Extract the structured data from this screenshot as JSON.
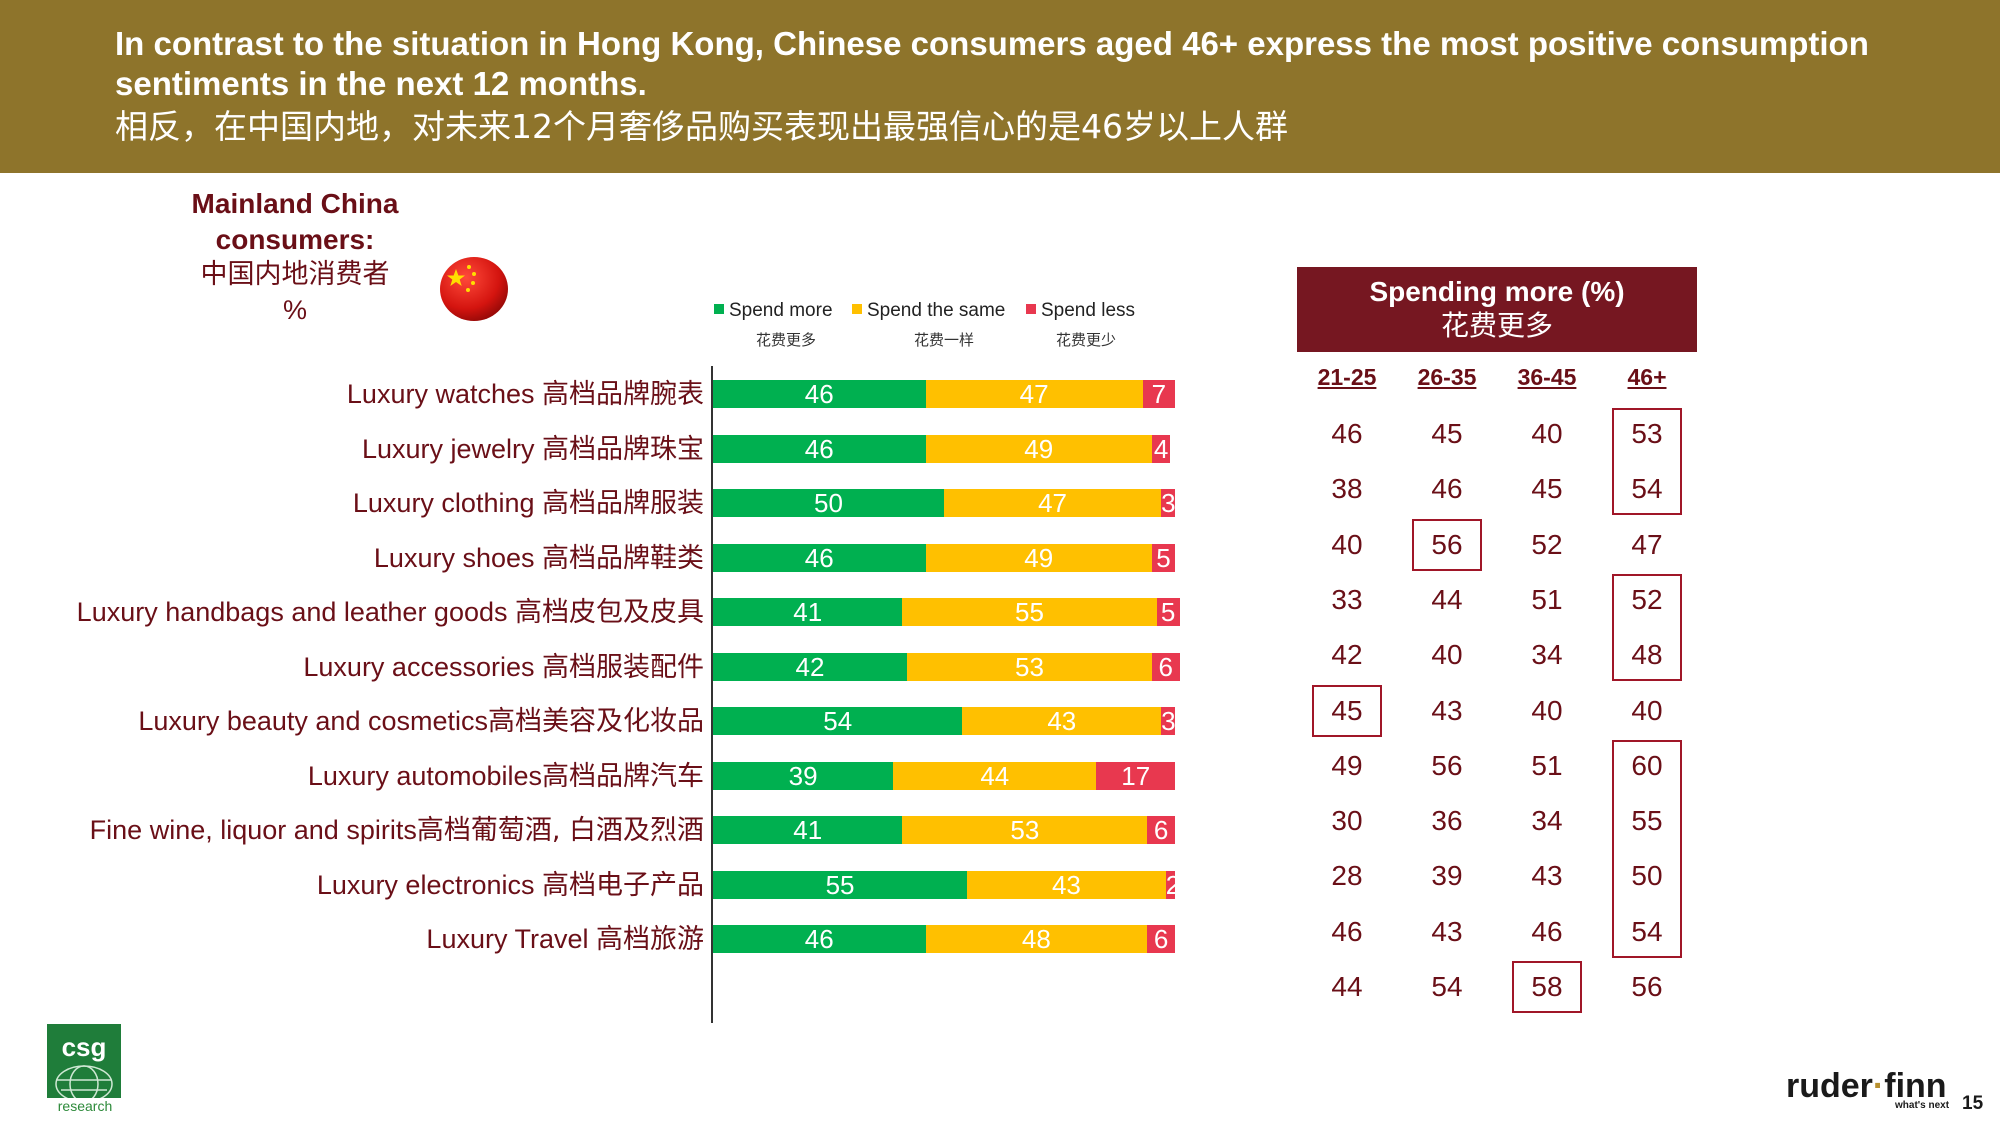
{
  "header": {
    "title_en": "In contrast to the situation in Hong Kong, Chinese consumers aged 46+ express the most positive consumption sentiments in the next 12 months.",
    "title_cn": "相反，在中国内地，对未来12个月奢侈品购买表现出最强信心的是46岁以上人群"
  },
  "segment": {
    "title_en": "Mainland China consumers:",
    "title_cn": "中国内地消费者",
    "unit": "%",
    "flag_icon": "china-flag-icon"
  },
  "colors": {
    "header_bg": "#8e742b",
    "spend_more": "#00b050",
    "spend_same": "#ffc000",
    "spend_less": "#e8384f",
    "maroon": "#761721",
    "highlight_box": "#a01628"
  },
  "chart_data": {
    "type": "bar",
    "orientation": "horizontal-stacked",
    "unit": "%",
    "legend": [
      {
        "name": "Spend more",
        "cn": "花费更多"
      },
      {
        "name": "Spend the same",
        "cn": "花费一样"
      },
      {
        "name": "Spend less",
        "cn": "花费更少"
      }
    ],
    "categories": [
      {
        "en": "Luxury watches ",
        "cn": "高档品牌腕表"
      },
      {
        "en": "Luxury jewelry ",
        "cn": "高档品牌珠宝"
      },
      {
        "en": "Luxury clothing ",
        "cn": "高档品牌服装"
      },
      {
        "en": "Luxury shoes ",
        "cn": "高档品牌鞋类"
      },
      {
        "en": "Luxury handbags and leather goods ",
        "cn": "高档皮包及皮具"
      },
      {
        "en": "Luxury accessories ",
        "cn": "高档服装配件"
      },
      {
        "en": "Luxury beauty and cosmetics",
        "cn": "高档美容及化妆品"
      },
      {
        "en": "Luxury automobiles",
        "cn": "高档品牌汽车"
      },
      {
        "en": "Fine wine, liquor and spirits",
        "cn": "高档葡萄酒, 白酒及烈酒"
      },
      {
        "en": "Luxury electronics ",
        "cn": "高档电子产品"
      },
      {
        "en": "Luxury Travel ",
        "cn": "高档旅游"
      }
    ],
    "series": [
      {
        "name": "Spend more",
        "values": [
          46,
          46,
          50,
          46,
          41,
          42,
          54,
          39,
          41,
          55,
          46
        ]
      },
      {
        "name": "Spend the same",
        "values": [
          47,
          49,
          47,
          49,
          55,
          53,
          43,
          44,
          53,
          43,
          48
        ]
      },
      {
        "name": "Spend less",
        "values": [
          7,
          4,
          3,
          5,
          5,
          6,
          3,
          17,
          6,
          2,
          6
        ]
      }
    ],
    "xlim": [
      0,
      100
    ]
  },
  "age_table": {
    "title_en": "Spending more (%)",
    "title_cn": "花费更多",
    "columns": [
      "21-25",
      "26-35",
      "36-45",
      "46+"
    ],
    "rows": [
      [
        46,
        45,
        40,
        53
      ],
      [
        38,
        46,
        45,
        54
      ],
      [
        40,
        56,
        52,
        47
      ],
      [
        33,
        44,
        51,
        52
      ],
      [
        42,
        40,
        34,
        48
      ],
      [
        45,
        43,
        40,
        40
      ],
      [
        49,
        56,
        51,
        60
      ],
      [
        30,
        36,
        34,
        55
      ],
      [
        28,
        39,
        43,
        50
      ],
      [
        46,
        43,
        46,
        54
      ],
      [
        44,
        54,
        58,
        56
      ]
    ],
    "highlights": [
      {
        "col": 3,
        "from_row": 0,
        "to_row": 1
      },
      {
        "col": 1,
        "from_row": 2,
        "to_row": 2
      },
      {
        "col": 3,
        "from_row": 3,
        "to_row": 4
      },
      {
        "col": 0,
        "from_row": 5,
        "to_row": 5
      },
      {
        "col": 3,
        "from_row": 6,
        "to_row": 9
      },
      {
        "col": 2,
        "from_row": 10,
        "to_row": 10
      }
    ]
  },
  "footer": {
    "csg_logo": "csg",
    "csg_sub": "research",
    "brand_left": "ruder",
    "brand_dot": "·",
    "brand_right": "finn",
    "brand_tag": "what's next",
    "page": "15"
  }
}
